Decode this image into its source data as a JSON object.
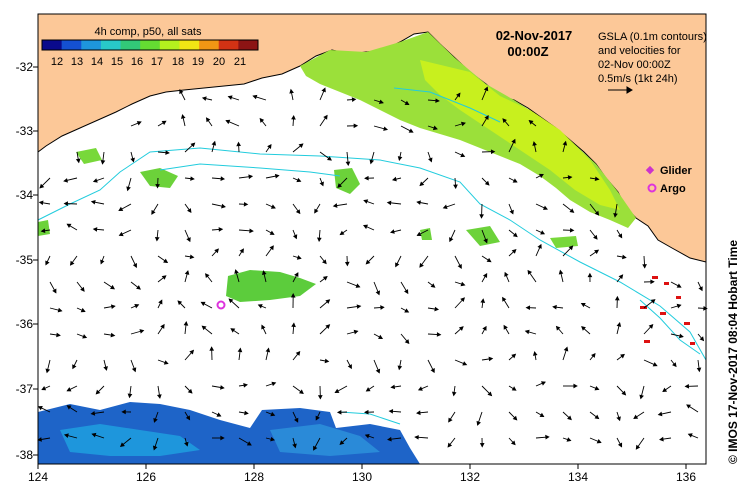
{
  "colorbar": {
    "title": "4h comp, p50, all sats",
    "ticks": [
      "12",
      "13",
      "14",
      "15",
      "16",
      "17",
      "18",
      "19",
      "20",
      "21"
    ],
    "colors": [
      "#0a0a8c",
      "#1450d2",
      "#1e96dc",
      "#28c8c8",
      "#32c878",
      "#64dc32",
      "#b4f01e",
      "#f0e614",
      "#f09614",
      "#d23214",
      "#8c1414"
    ]
  },
  "date_label": {
    "line1": "02-Nov-2017",
    "line2": "00:00Z"
  },
  "gsla_note": [
    "GSLA (0.1m contours)",
    "and velocities for",
    "02-Nov 00:00Z",
    "0.5m/s (1kt 24h)"
  ],
  "legend": {
    "glider": "Glider",
    "argo": "Argo"
  },
  "credit": "© IMOS 17-Nov-2017 08:04 Hobart Time",
  "axes": {
    "xticks": [
      "124",
      "126",
      "128",
      "130",
      "132",
      "134",
      "136"
    ],
    "yticks": [
      "-32",
      "-33",
      "-34",
      "-35",
      "-36",
      "-37",
      "-38"
    ]
  },
  "colors": {
    "land": "#fcc898",
    "coast": "#000000",
    "contour": "#22ccdd",
    "argo": "#dd33dd",
    "glider": "#cc33cc",
    "warm_patch": "#8cdc32",
    "cool_patch": "#1e64c8"
  }
}
